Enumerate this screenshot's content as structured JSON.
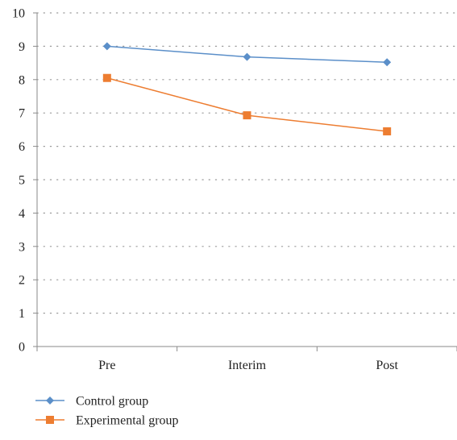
{
  "chart_data": {
    "type": "line",
    "title": "",
    "xlabel": "",
    "ylabel": "",
    "categories": [
      "Pre",
      "Interim",
      "Post"
    ],
    "ylim": [
      0,
      10
    ],
    "yticks": [
      0,
      1,
      2,
      3,
      4,
      5,
      6,
      7,
      8,
      9,
      10
    ],
    "grid": true,
    "legend_position": "bottom-left",
    "series": [
      {
        "name": "Control group",
        "values": [
          9.0,
          8.68,
          8.52
        ],
        "color": "#5b8fc9",
        "marker": "diamond"
      },
      {
        "name": "Experimental group",
        "values": [
          8.05,
          6.93,
          6.45
        ],
        "color": "#ed7d31",
        "marker": "square"
      }
    ]
  }
}
